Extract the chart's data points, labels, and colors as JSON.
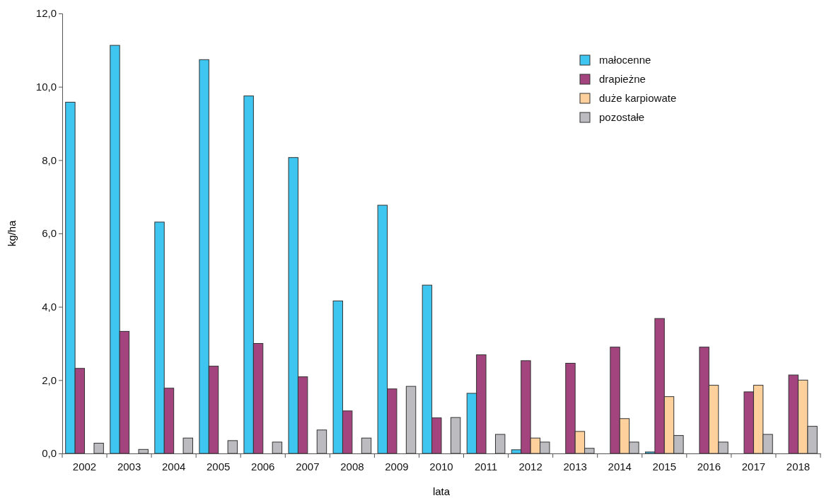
{
  "chart_data": {
    "type": "bar",
    "xlabel": "lata",
    "ylabel": "kg/ha",
    "categories": [
      "2002",
      "2003",
      "2004",
      "2005",
      "2006",
      "2007",
      "2008",
      "2009",
      "2010",
      "2011",
      "2012",
      "2013",
      "2014",
      "2015",
      "2016",
      "2017",
      "2018"
    ],
    "series": [
      {
        "name": "małocenne",
        "color": "#3ec6f0",
        "values": [
          9.58,
          11.13,
          6.31,
          10.74,
          9.75,
          8.07,
          4.16,
          6.77,
          4.59,
          1.64,
          0.1,
          0,
          0,
          0.04,
          0,
          0,
          0
        ]
      },
      {
        "name": "drapieżne",
        "color": "#a3447f",
        "values": [
          2.32,
          3.33,
          1.78,
          2.38,
          3.0,
          2.09,
          1.16,
          1.76,
          0.97,
          2.69,
          2.53,
          2.46,
          2.9,
          3.68,
          2.9,
          1.68,
          2.14
        ]
      },
      {
        "name": "duże karpiowate",
        "color": "#fdd09c",
        "values": [
          0,
          0,
          0,
          0,
          0,
          0,
          0,
          0,
          0,
          0,
          0.42,
          0.6,
          0.95,
          1.55,
          1.86,
          1.86,
          2.0
        ]
      },
      {
        "name": "pozostałe",
        "color": "#bcbcc0",
        "values": [
          0.28,
          0.11,
          0.42,
          0.35,
          0.31,
          0.64,
          0.42,
          1.83,
          0.98,
          0.52,
          0.31,
          0.14,
          0.31,
          0.49,
          0.31,
          0.52,
          0.74
        ]
      }
    ],
    "ylim": [
      0,
      12
    ],
    "yticks": [
      {
        "value": 0,
        "label": "0,0"
      },
      {
        "value": 2,
        "label": "2,0"
      },
      {
        "value": 4,
        "label": "4,0"
      },
      {
        "value": 6,
        "label": "6,0"
      },
      {
        "value": 8,
        "label": "8,0"
      },
      {
        "value": 10,
        "label": "10,0"
      },
      {
        "value": 12,
        "label": "12,0"
      }
    ],
    "grid": false,
    "legend": "top right"
  }
}
